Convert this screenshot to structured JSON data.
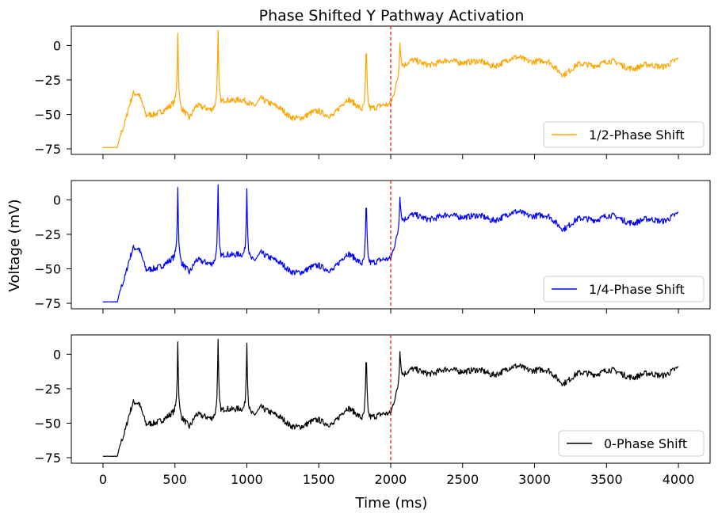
{
  "figure": {
    "title": "Phase Shifted Y Pathway Activation",
    "xlabel": "Time (ms)",
    "ylabel": "Voltage (mV)"
  },
  "chart_data": [
    {
      "type": "line",
      "title": "Phase Shifted Y Pathway Activation",
      "xlabel": "",
      "ylabel": "",
      "xlim": [
        -220,
        4220
      ],
      "ylim": [
        -79,
        14
      ],
      "x_ticks": [
        0,
        500,
        1000,
        1500,
        2000,
        2500,
        3000,
        3500,
        4000
      ],
      "y_ticks": [
        0,
        -25,
        -50,
        -75
      ],
      "y_tick_labels": [
        "0",
        "−25",
        "−50",
        "−75"
      ],
      "show_x_tick_labels": false,
      "grid": false,
      "legend_position": "lower-right",
      "vline": {
        "x": 2000,
        "color": "#ff0000",
        "style": "dashed"
      },
      "series": [
        {
          "name": "1/2-Phase Shift",
          "color": "#ffa500",
          "spikes_at": [
            520,
            800,
            1830,
            2065
          ],
          "spike_peak": 9
        }
      ]
    },
    {
      "type": "line",
      "xlabel": "",
      "ylabel": "",
      "xlim": [
        -220,
        4220
      ],
      "ylim": [
        -79,
        14
      ],
      "x_ticks": [
        0,
        500,
        1000,
        1500,
        2000,
        2500,
        3000,
        3500,
        4000
      ],
      "y_ticks": [
        0,
        -25,
        -50,
        -75
      ],
      "y_tick_labels": [
        "0",
        "−25",
        "−50",
        "−75"
      ],
      "show_x_tick_labels": false,
      "grid": false,
      "legend_position": "lower-right",
      "vline": {
        "x": 2000,
        "color": "#ff0000",
        "style": "dashed"
      },
      "series": [
        {
          "name": "1/4-Phase Shift",
          "color": "#0000ff",
          "spikes_at": [
            520,
            800,
            1000,
            1830,
            2065
          ],
          "spike_peak": 9
        }
      ]
    },
    {
      "type": "line",
      "xlabel": "Time (ms)",
      "ylabel": "",
      "xlim": [
        -220,
        4220
      ],
      "ylim": [
        -79,
        14
      ],
      "x_ticks": [
        0,
        500,
        1000,
        1500,
        2000,
        2500,
        3000,
        3500,
        4000
      ],
      "y_ticks": [
        0,
        -25,
        -50,
        -75
      ],
      "y_tick_labels": [
        "0",
        "−25",
        "−50",
        "−75"
      ],
      "show_x_tick_labels": true,
      "grid": false,
      "legend_position": "lower-right",
      "vline": {
        "x": 2000,
        "color": "#ff0000",
        "style": "dashed"
      },
      "series": [
        {
          "name": "0-Phase Shift",
          "color": "#000000",
          "spikes_at": [
            520,
            800,
            1000,
            1830,
            2065
          ],
          "spike_peak": 9
        }
      ]
    }
  ],
  "trace_profile": {
    "x": [
      0,
      100,
      120,
      150,
      180,
      210,
      250,
      300,
      350,
      400,
      500,
      600,
      650,
      700,
      750,
      850,
      950,
      1050,
      1100,
      1200,
      1300,
      1400,
      1500,
      1600,
      1700,
      1750,
      1800,
      1900,
      1950,
      2000,
      2030,
      2080,
      2150,
      2300,
      2500,
      2700,
      2900,
      3100,
      3200,
      3300,
      3500,
      3700,
      3900,
      4000
    ],
    "y": [
      -74,
      -74,
      -65,
      -56,
      -43,
      -34,
      -36,
      -52,
      -50,
      -47,
      -42,
      -52,
      -42,
      -45,
      -48,
      -38,
      -40,
      -44,
      -37,
      -45,
      -51,
      -52,
      -48,
      -50,
      -40,
      -42,
      -45,
      -46,
      -44,
      -42,
      -30,
      -15,
      -12,
      -13,
      -11,
      -14,
      -9,
      -13,
      -20,
      -15,
      -12,
      -16,
      -14,
      -11
    ]
  }
}
